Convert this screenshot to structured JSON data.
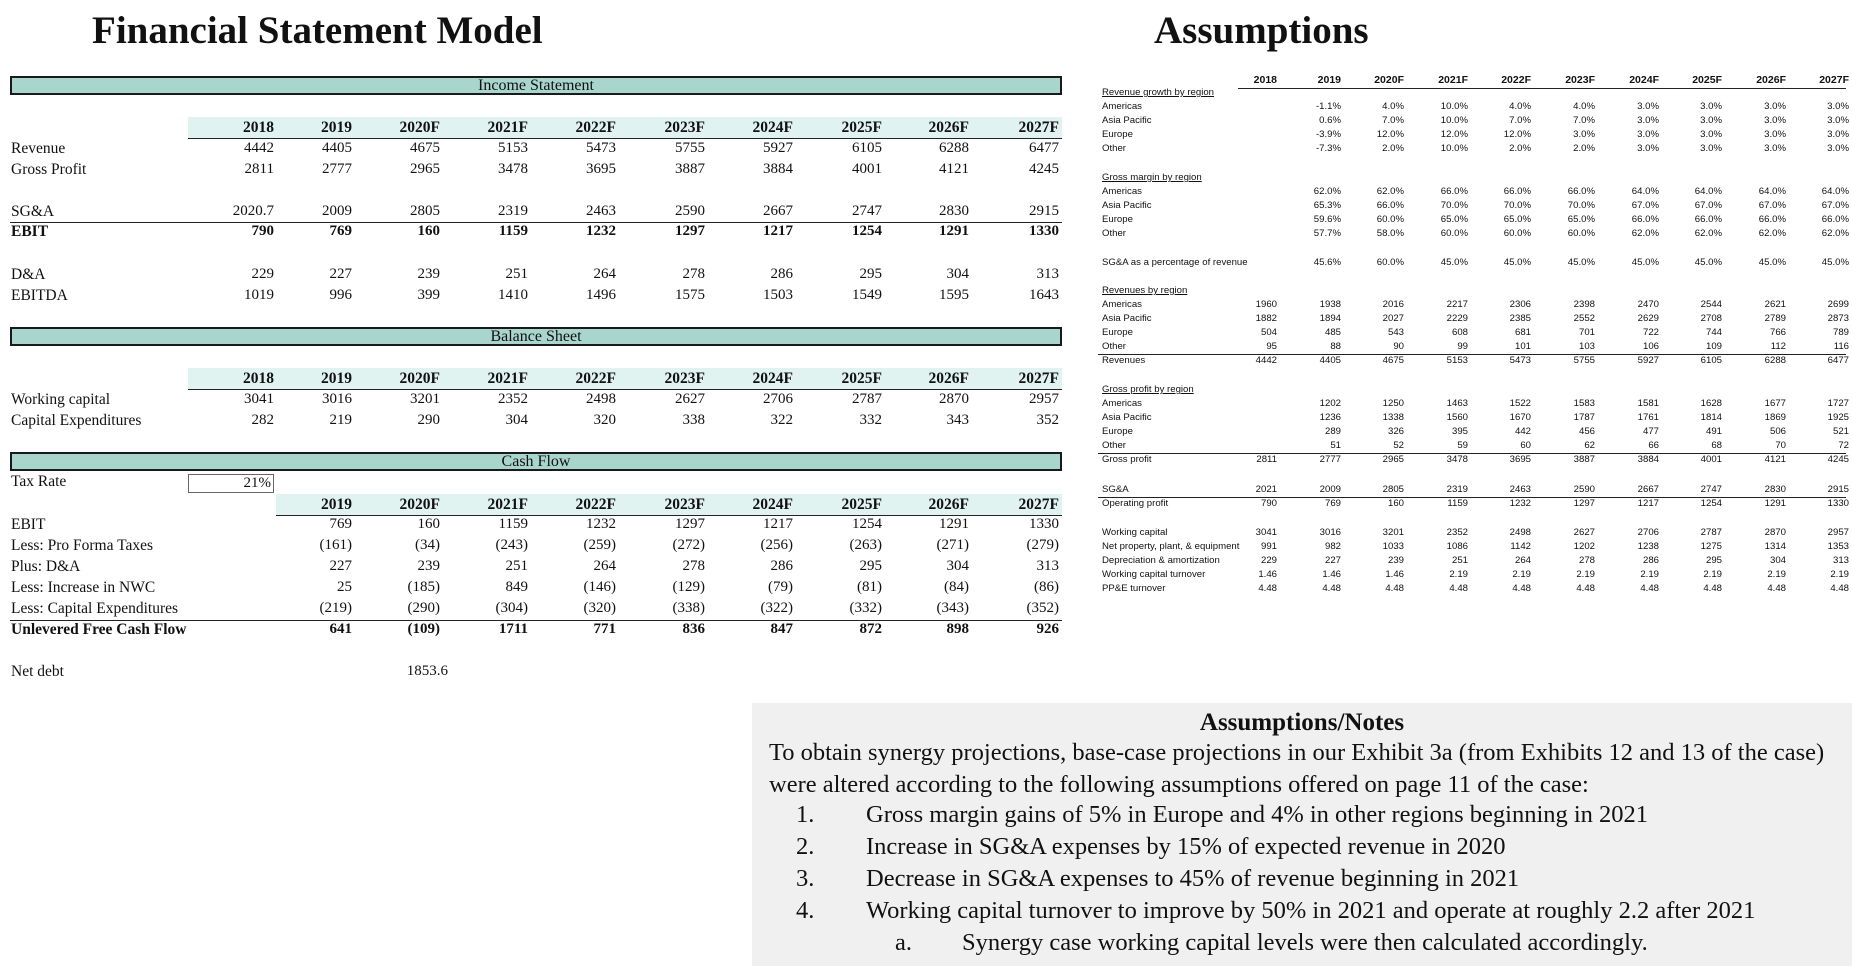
{
  "left_title": "Financial Statement Model",
  "right_title": "Assumptions",
  "income": {
    "title": "Income Statement",
    "years": [
      "2018",
      "2019",
      "2020F",
      "2021F",
      "2022F",
      "2023F",
      "2024F",
      "2025F",
      "2026F",
      "2027F"
    ],
    "rows": [
      {
        "label": "Revenue",
        "bold": false,
        "values": [
          "4442",
          "4405",
          "4675",
          "5153",
          "5473",
          "5755",
          "5927",
          "6105",
          "6288",
          "6477"
        ]
      },
      {
        "label": "Gross Profit",
        "bold": false,
        "values": [
          "2811",
          "2777",
          "2965",
          "3478",
          "3695",
          "3887",
          "3884",
          "4001",
          "4121",
          "4245"
        ]
      },
      {
        "label": "SG&A",
        "bold": false,
        "values": [
          "2020.7",
          "2009",
          "2805",
          "2319",
          "2463",
          "2590",
          "2667",
          "2747",
          "2830",
          "2915"
        ]
      },
      {
        "label": "EBIT",
        "bold": true,
        "values": [
          "790",
          "769",
          "160",
          "1159",
          "1232",
          "1297",
          "1217",
          "1254",
          "1291",
          "1330"
        ]
      },
      {
        "label": "D&A",
        "bold": false,
        "values": [
          "229",
          "227",
          "239",
          "251",
          "264",
          "278",
          "286",
          "295",
          "304",
          "313"
        ]
      },
      {
        "label": "EBITDA",
        "bold": false,
        "values": [
          "1019",
          "996",
          "399",
          "1410",
          "1496",
          "1575",
          "1503",
          "1549",
          "1595",
          "1643"
        ]
      }
    ]
  },
  "balance": {
    "title": "Balance Sheet",
    "years": [
      "2018",
      "2019",
      "2020F",
      "2021F",
      "2022F",
      "2023F",
      "2024F",
      "2025F",
      "2026F",
      "2027F"
    ],
    "rows": [
      {
        "label": "Working capital",
        "values": [
          "3041",
          "3016",
          "3201",
          "2352",
          "2498",
          "2627",
          "2706",
          "2787",
          "2870",
          "2957"
        ]
      },
      {
        "label": "Capital Expenditures",
        "values": [
          "282",
          "219",
          "290",
          "304",
          "320",
          "338",
          "322",
          "332",
          "343",
          "352"
        ]
      }
    ]
  },
  "cashflow": {
    "title": "Cash Flow",
    "tax_label": "Tax Rate",
    "tax_value": "21%",
    "years": [
      "2019",
      "2020F",
      "2021F",
      "2022F",
      "2023F",
      "2024F",
      "2025F",
      "2026F",
      "2027F"
    ],
    "rows": [
      {
        "label": "EBIT",
        "bold": false,
        "values": [
          "769",
          "160",
          "1159",
          "1232",
          "1297",
          "1217",
          "1254",
          "1291",
          "1330"
        ]
      },
      {
        "label": "Less: Pro Forma Taxes",
        "bold": false,
        "values": [
          "(161)",
          "(34)",
          "(243)",
          "(259)",
          "(272)",
          "(256)",
          "(263)",
          "(271)",
          "(279)"
        ]
      },
      {
        "label": "Plus: D&A",
        "bold": false,
        "values": [
          "227",
          "239",
          "251",
          "264",
          "278",
          "286",
          "295",
          "304",
          "313"
        ]
      },
      {
        "label": "Less: Increase in NWC",
        "bold": false,
        "values": [
          "25",
          "(185)",
          "849",
          "(146)",
          "(129)",
          "(79)",
          "(81)",
          "(84)",
          "(86)"
        ]
      },
      {
        "label": "Less: Capital Expenditures",
        "bold": false,
        "values": [
          "(219)",
          "(290)",
          "(304)",
          "(320)",
          "(338)",
          "(322)",
          "(332)",
          "(343)",
          "(352)"
        ]
      },
      {
        "label": "Unlevered Free Cash Flow",
        "bold": true,
        "values": [
          "641",
          "(109)",
          "1711",
          "771",
          "836",
          "847",
          "872",
          "898",
          "926"
        ]
      }
    ],
    "net_debt_label": "Net debt",
    "net_debt_value": "1853.6"
  },
  "assumptions": {
    "years": [
      "2018",
      "2019",
      "2020F",
      "2021F",
      "2022F",
      "2023F",
      "2024F",
      "2025F",
      "2026F",
      "2027F"
    ],
    "rows": [
      {
        "label": "Revenue growth by region",
        "section": true,
        "values": []
      },
      {
        "label": "Americas",
        "values": [
          "",
          "-1.1%",
          "4.0%",
          "10.0%",
          "4.0%",
          "4.0%",
          "3.0%",
          "3.0%",
          "3.0%",
          "3.0%"
        ]
      },
      {
        "label": "Asia Pacific",
        "values": [
          "",
          "0.6%",
          "7.0%",
          "10.0%",
          "7.0%",
          "7.0%",
          "3.0%",
          "3.0%",
          "3.0%",
          "3.0%"
        ]
      },
      {
        "label": "Europe",
        "values": [
          "",
          "-3.9%",
          "12.0%",
          "12.0%",
          "12.0%",
          "3.0%",
          "3.0%",
          "3.0%",
          "3.0%",
          "3.0%"
        ]
      },
      {
        "label": "Other",
        "values": [
          "",
          "-7.3%",
          "2.0%",
          "10.0%",
          "2.0%",
          "2.0%",
          "3.0%",
          "3.0%",
          "3.0%",
          "3.0%"
        ]
      },
      {
        "label": "Gross margin by region",
        "section": true,
        "values": []
      },
      {
        "label": "Americas",
        "values": [
          "",
          "62.0%",
          "62.0%",
          "66.0%",
          "66.0%",
          "66.0%",
          "64.0%",
          "64.0%",
          "64.0%",
          "64.0%"
        ]
      },
      {
        "label": "Asia Pacific",
        "values": [
          "",
          "65.3%",
          "66.0%",
          "70.0%",
          "70.0%",
          "70.0%",
          "67.0%",
          "67.0%",
          "67.0%",
          "67.0%"
        ]
      },
      {
        "label": "Europe",
        "values": [
          "",
          "59.6%",
          "60.0%",
          "65.0%",
          "65.0%",
          "65.0%",
          "66.0%",
          "66.0%",
          "66.0%",
          "66.0%"
        ]
      },
      {
        "label": "Other",
        "values": [
          "",
          "57.7%",
          "58.0%",
          "60.0%",
          "60.0%",
          "60.0%",
          "62.0%",
          "62.0%",
          "62.0%",
          "62.0%"
        ]
      },
      {
        "label": "SG&A as a percentage of revenue",
        "values": [
          "",
          "45.6%",
          "60.0%",
          "45.0%",
          "45.0%",
          "45.0%",
          "45.0%",
          "45.0%",
          "45.0%",
          "45.0%"
        ]
      },
      {
        "label": "Revenues by region",
        "section": true,
        "values": []
      },
      {
        "label": "Americas",
        "values": [
          "1960",
          "1938",
          "2016",
          "2217",
          "2306",
          "2398",
          "2470",
          "2544",
          "2621",
          "2699"
        ]
      },
      {
        "label": "Asia Pacific",
        "values": [
          "1882",
          "1894",
          "2027",
          "2229",
          "2385",
          "2552",
          "2629",
          "2708",
          "2789",
          "2873"
        ]
      },
      {
        "label": "Europe",
        "values": [
          "504",
          "485",
          "543",
          "608",
          "681",
          "701",
          "722",
          "744",
          "766",
          "789"
        ]
      },
      {
        "label": "Other",
        "values": [
          "95",
          "88",
          "90",
          "99",
          "101",
          "103",
          "106",
          "109",
          "112",
          "116"
        ]
      },
      {
        "label": "Revenues",
        "values": [
          "4442",
          "4405",
          "4675",
          "5153",
          "5473",
          "5755",
          "5927",
          "6105",
          "6288",
          "6477"
        ]
      },
      {
        "label": "Gross profit by region",
        "section": true,
        "values": []
      },
      {
        "label": "Americas",
        "values": [
          "",
          "1202",
          "1250",
          "1463",
          "1522",
          "1583",
          "1581",
          "1628",
          "1677",
          "1727"
        ]
      },
      {
        "label": "Asia Pacific",
        "values": [
          "",
          "1236",
          "1338",
          "1560",
          "1670",
          "1787",
          "1761",
          "1814",
          "1869",
          "1925"
        ]
      },
      {
        "label": "Europe",
        "values": [
          "",
          "289",
          "326",
          "395",
          "442",
          "456",
          "477",
          "491",
          "506",
          "521"
        ]
      },
      {
        "label": "Other",
        "values": [
          "",
          "51",
          "52",
          "59",
          "60",
          "62",
          "66",
          "68",
          "70",
          "72"
        ]
      },
      {
        "label": "Gross profit",
        "values": [
          "2811",
          "2777",
          "2965",
          "3478",
          "3695",
          "3887",
          "3884",
          "4001",
          "4121",
          "4245"
        ]
      },
      {
        "label": "SG&A",
        "values": [
          "2021",
          "2009",
          "2805",
          "2319",
          "2463",
          "2590",
          "2667",
          "2747",
          "2830",
          "2915"
        ]
      },
      {
        "label": "Operating profit",
        "values": [
          "790",
          "769",
          "160",
          "1159",
          "1232",
          "1297",
          "1217",
          "1254",
          "1291",
          "1330"
        ]
      },
      {
        "label": "Working capital",
        "values": [
          "3041",
          "3016",
          "3201",
          "2352",
          "2498",
          "2627",
          "2706",
          "2787",
          "2870",
          "2957"
        ]
      },
      {
        "label": "Net property, plant, & equipment",
        "values": [
          "991",
          "982",
          "1033",
          "1086",
          "1142",
          "1202",
          "1238",
          "1275",
          "1314",
          "1353"
        ]
      },
      {
        "label": "Depreciation & amortization",
        "values": [
          "229",
          "227",
          "239",
          "251",
          "264",
          "278",
          "286",
          "295",
          "304",
          "313"
        ]
      },
      {
        "label": "Working capital turnover",
        "values": [
          "1.46",
          "1.46",
          "1.46",
          "2.19",
          "2.19",
          "2.19",
          "2.19",
          "2.19",
          "2.19",
          "2.19"
        ]
      },
      {
        "label": "PP&E turnover",
        "values": [
          "4.48",
          "4.48",
          "4.48",
          "4.48",
          "4.48",
          "4.48",
          "4.48",
          "4.48",
          "4.48",
          "4.48"
        ]
      }
    ]
  },
  "notes": {
    "title": "Assumptions/Notes",
    "intro": "To obtain synergy projections, base-case projections in our Exhibit 3a (from Exhibits 12 and 13 of the case) were altered according to the following assumptions offered on page 11 of the case:",
    "items": [
      {
        "marker": "1.",
        "text": "Gross margin gains of 5% in Europe and 4% in other regions beginning in 2021"
      },
      {
        "marker": "2.",
        "text": "Increase in SG&A expenses by 15% of expected revenue in 2020"
      },
      {
        "marker": "3.",
        "text": "Decrease in SG&A expenses to 45% of revenue beginning in 2021"
      },
      {
        "marker": "4.",
        "text": "Working capital turnover to improve by 50% in 2021 and operate at roughly 2.2 after 2021"
      }
    ],
    "sub_item": {
      "marker": "a.",
      "text": "Synergy case working capital levels were then calculated accordingly."
    }
  }
}
